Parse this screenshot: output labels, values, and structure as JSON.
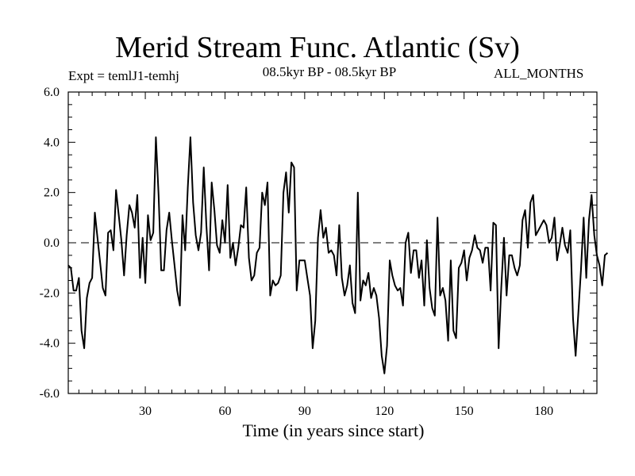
{
  "chart_data": {
    "type": "line",
    "title": "Merid Stream Func. Atlantic (Sv)",
    "subtitle": "08.5kyr BP - 08.5kyr BP",
    "experiment": "Expt = temlJ1-temhj",
    "period": "ALL_MONTHS",
    "xlabel": "Time (in years since start)",
    "ylabel": "",
    "xlim": [
      1,
      200
    ],
    "ylim": [
      -6,
      6
    ],
    "xticks": [
      30,
      60,
      90,
      120,
      150,
      180
    ],
    "xtick_labels": [
      "30",
      "60",
      "90",
      "120",
      "150",
      "180"
    ],
    "yticks": [
      -6,
      -4,
      -2,
      0,
      2,
      4,
      6
    ],
    "ytick_labels": [
      "-6.0",
      "-4.0",
      "-2.0",
      "0.0",
      "2.0",
      "4.0",
      "6.0"
    ],
    "zero_line": true,
    "series": [
      {
        "name": "temlJ1-temhj",
        "x_start": 1,
        "x_step": 1,
        "values": [
          -0.9,
          -1.0,
          -1.9,
          -1.9,
          -1.4,
          -3.5,
          -4.2,
          -2.2,
          -1.6,
          -1.4,
          1.2,
          0.2,
          -0.8,
          -1.8,
          -2.1,
          0.4,
          0.5,
          -0.3,
          2.1,
          1.1,
          0.1,
          -1.3,
          0.3,
          1.5,
          1.2,
          0.6,
          1.9,
          -1.4,
          0.2,
          -1.6,
          1.1,
          0.1,
          0.4,
          4.2,
          1.9,
          -1.1,
          -1.1,
          0.5,
          1.2,
          0.1,
          -0.9,
          -1.9,
          -2.5,
          1.1,
          -0.3,
          2.2,
          4.2,
          1.6,
          0.3,
          -0.3,
          0.4,
          3.0,
          0.7,
          -1.1,
          2.4,
          1.3,
          -0.1,
          -0.4,
          0.9,
          0.0,
          2.3,
          -0.6,
          0.0,
          -0.9,
          -0.2,
          0.7,
          0.6,
          2.2,
          -0.6,
          -1.5,
          -1.3,
          -0.4,
          -0.2,
          2.0,
          1.5,
          2.4,
          -2.1,
          -1.5,
          -1.7,
          -1.6,
          -1.3,
          2.0,
          2.8,
          1.2,
          3.2,
          3.0,
          -1.9,
          -0.7,
          -0.7,
          -0.7,
          -1.4,
          -2.1,
          -4.2,
          -3.1,
          0.2,
          1.3,
          0.2,
          0.6,
          -0.4,
          -0.3,
          -0.5,
          -1.3,
          0.7,
          -1.4,
          -2.1,
          -1.7,
          -0.9,
          -2.4,
          -2.8,
          2.0,
          -2.3,
          -1.5,
          -1.7,
          -1.2,
          -2.2,
          -1.8,
          -2.1,
          -3.0,
          -4.5,
          -5.2,
          -4.1,
          -0.7,
          -1.3,
          -1.7,
          -1.9,
          -1.8,
          -2.5,
          0.0,
          0.4,
          -1.2,
          -0.3,
          -0.3,
          -1.4,
          -0.7,
          -2.5,
          0.1,
          -1.8,
          -2.6,
          -2.9,
          1.0,
          -2.1,
          -1.8,
          -2.3,
          -3.9,
          -0.7,
          -3.5,
          -3.8,
          -1.0,
          -0.8,
          -0.3,
          -1.5,
          -0.6,
          -0.3,
          0.3,
          -0.2,
          -0.3,
          -0.8,
          -0.2,
          -0.2,
          -1.9,
          0.8,
          0.7,
          -4.2,
          -1.8,
          0.2,
          -2.1,
          -0.5,
          -0.5,
          -1.0,
          -1.3,
          -0.9,
          0.9,
          1.3,
          -0.2,
          1.6,
          1.9,
          0.3,
          0.5,
          0.7,
          0.9,
          0.7,
          0.0,
          0.2,
          1.0,
          -0.7,
          -0.1,
          0.6,
          -0.1,
          -0.4,
          0.5,
          -3.0,
          -4.5,
          -2.8,
          -1.1,
          1.0,
          -1.4,
          0.9,
          1.9,
          0.3,
          -0.5,
          -0.9,
          -1.7,
          -0.5,
          -0.4
        ]
      }
    ]
  }
}
